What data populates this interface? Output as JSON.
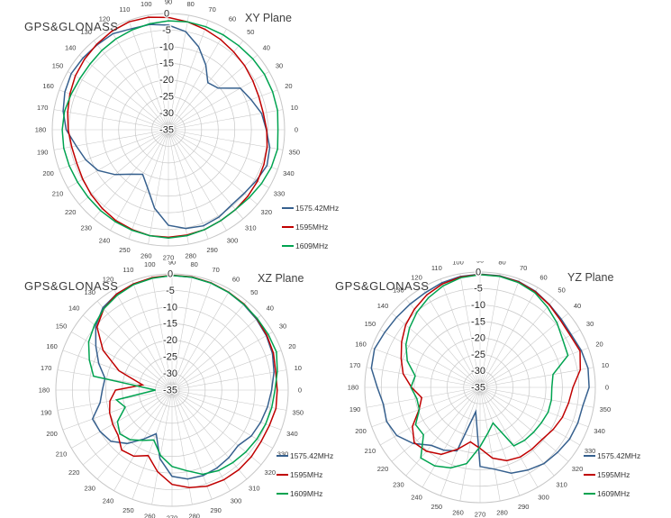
{
  "figure": {
    "description": "Three polar antenna radiation pattern plots for a GPS & GLONASS antenna",
    "background": "#ffffff"
  },
  "colors": {
    "grid": "#c7c7c7",
    "angle_tick_label": "#404040",
    "radial_tick_label": "#262626",
    "hub_smudge": "#8a8a8a"
  },
  "polar_axes": {
    "r_ticks": [
      0,
      -5,
      -10,
      -15,
      -20,
      -25,
      -30,
      -35
    ],
    "r_min": -35,
    "r_max": 0,
    "angle_tick_step_deg": 10,
    "angle_direction": "counterclockwise, 0 at right, 90 at top",
    "grid": "on"
  },
  "chart_data": [
    {
      "type": "line",
      "polar": true,
      "title": "XY Plane",
      "corner_label": "GPS&GLONASS",
      "legend_position": "bottom-right",
      "angles_deg": [
        0,
        10,
        20,
        30,
        40,
        50,
        60,
        70,
        80,
        90,
        100,
        110,
        120,
        130,
        140,
        150,
        160,
        170,
        180,
        190,
        200,
        210,
        220,
        230,
        240,
        250,
        260,
        270,
        280,
        290,
        300,
        310,
        320,
        330,
        340,
        350
      ],
      "series": [
        {
          "name": "1575.42MHz",
          "color": "#36608e",
          "values": [
            -5.5,
            -6.5,
            -8.5,
            -10,
            -15.5,
            -16.5,
            -12.5,
            -8.4,
            -5,
            -3.5,
            -2.8,
            -2.6,
            -1.6,
            -1.6,
            -1.4,
            -1.2,
            -1.8,
            -2.8,
            -4.2,
            -6.8,
            -8.5,
            -10.5,
            -14,
            -17.5,
            -19.5,
            -16.5,
            -11,
            -6.2,
            -4.8,
            -4.2,
            -4.6,
            -5.4,
            -5.2,
            -4.4,
            -3.4,
            -4
          ]
        },
        {
          "name": "1595MHz",
          "color": "#c00000",
          "values": [
            -5.4,
            -6,
            -6,
            -5.6,
            -5,
            -4.4,
            -3.6,
            -2.8,
            -2,
            -1.2,
            -0.6,
            -0.4,
            -0.8,
            -1.4,
            -2,
            -2.6,
            -3.4,
            -4.2,
            -4.8,
            -5.4,
            -5.6,
            -5.2,
            -4.6,
            -4,
            -3.4,
            -3,
            -2.6,
            -2.6,
            -2.8,
            -3,
            -3.4,
            -3.6,
            -3.8,
            -4,
            -4.4,
            -4.8
          ]
        },
        {
          "name": "1609MHz",
          "color": "#00a350",
          "values": [
            -2,
            -1.6,
            -1.6,
            -1.6,
            -1.8,
            -2,
            -2,
            -2,
            -2,
            -2.2,
            -2.6,
            -3,
            -3.4,
            -3.8,
            -4.2,
            -4.2,
            -3.8,
            -3.2,
            -3,
            -3,
            -3.2,
            -3.4,
            -3.4,
            -3.2,
            -3,
            -2.8,
            -2.6,
            -2.4,
            -2.6,
            -3,
            -3.4,
            -3.6,
            -3.2,
            -2.6,
            -2,
            -1.6
          ]
        }
      ]
    },
    {
      "type": "line",
      "polar": true,
      "title": "XZ Plane",
      "corner_label": "GPS&GLONASS",
      "legend_position": "bottom-right",
      "angles_deg": [
        0,
        10,
        20,
        30,
        40,
        50,
        60,
        70,
        80,
        90,
        100,
        110,
        120,
        130,
        140,
        150,
        160,
        170,
        180,
        190,
        200,
        210,
        220,
        230,
        240,
        250,
        260,
        270,
        280,
        290,
        300,
        310,
        320,
        330,
        340,
        350
      ],
      "series": [
        {
          "name": "1575.42MHz",
          "color": "#36608e",
          "values": [
            -5,
            -3.8,
            -2.8,
            -2.2,
            -1.8,
            -1.4,
            -1,
            -0.7,
            -0.5,
            -0.5,
            -0.7,
            -1,
            -1.6,
            -2.6,
            -5,
            -8.5,
            -11.5,
            -14.5,
            -14,
            -13,
            -9.5,
            -10,
            -11,
            -14,
            -18,
            -21,
            -14,
            -9,
            -7.8,
            -7.6,
            -7.9,
            -8.4,
            -9,
            -7.4,
            -6.6,
            -5.8
          ]
        },
        {
          "name": "1595MHz",
          "color": "#c00000",
          "values": [
            -3.3,
            -3.3,
            -2.5,
            -2,
            -1.6,
            -1.2,
            -0.9,
            -0.6,
            -0.4,
            -0.4,
            -0.6,
            -1,
            -1.6,
            -3,
            -5.5,
            -11,
            -18,
            -26,
            -18,
            -16,
            -15,
            -14.4,
            -13.8,
            -11.4,
            -12,
            -14,
            -10,
            -6.6,
            -5.2,
            -4.2,
            -3.8,
            -3.7,
            -3.8,
            -4,
            -3.8,
            -3.2
          ]
        },
        {
          "name": "1609MHz",
          "color": "#00a350",
          "values": [
            -4,
            -2.8,
            -1.5,
            -1.5,
            -1.5,
            -1.3,
            -1,
            -0.7,
            -0.5,
            -0.5,
            -0.8,
            -1.2,
            -2,
            -3,
            -4.5,
            -6,
            -8.5,
            -11,
            -30,
            -18,
            -20,
            -16,
            -14.5,
            -15.5,
            -17.5,
            -19,
            -15,
            -12,
            -10.4,
            -8,
            -7,
            -6.5,
            -6,
            -5.5,
            -5,
            -4.5
          ]
        }
      ]
    },
    {
      "type": "line",
      "polar": true,
      "title": "YZ Plane",
      "corner_label": "GPS&GLONASS",
      "legend_position": "bottom-right",
      "angles_deg": [
        0,
        10,
        20,
        30,
        40,
        50,
        60,
        70,
        80,
        90,
        100,
        110,
        120,
        130,
        140,
        150,
        160,
        170,
        180,
        190,
        200,
        210,
        220,
        230,
        240,
        250,
        260,
        270,
        280,
        290,
        300,
        310,
        320,
        330,
        340,
        350
      ],
      "series": [
        {
          "name": "1575.42MHz",
          "color": "#36608e",
          "values": [
            -1.9,
            -1.7,
            -2.3,
            -3,
            -2.8,
            -2.2,
            -1.3,
            -0.8,
            -0.6,
            -0.6,
            -0.8,
            -1.2,
            -1.8,
            -2,
            -1.9,
            -1.6,
            -0.9,
            -1.5,
            -3.8,
            -5.2,
            -4.8,
            -5.8,
            -8.5,
            -12,
            -13,
            -14.5,
            -27.5,
            -11,
            -9.8,
            -7.3,
            -6,
            -4.8,
            -4.3,
            -3.6,
            -3.4,
            -3.3
          ]
        },
        {
          "name": "1595MHz",
          "color": "#c00000",
          "values": [
            -6.8,
            -4.1,
            -2.7,
            -3.4,
            -3.2,
            -2.3,
            -1.5,
            -0.9,
            -0.7,
            -0.7,
            -1,
            -1.6,
            -2.6,
            -4,
            -5.5,
            -7.5,
            -9.5,
            -11.3,
            -14.2,
            -17,
            -15.3,
            -11.3,
            -8.9,
            -9.7,
            -11.5,
            -15,
            -18.2,
            -16.5,
            -13.2,
            -11.3,
            -10.6,
            -10.5,
            -10.4,
            -9.4,
            -8.4,
            -7.7
          ]
        },
        {
          "name": "1609MHz",
          "color": "#00a350",
          "values": [
            -13.2,
            -12.5,
            -6.6,
            -6,
            -4.5,
            -3.2,
            -1.8,
            -1.1,
            -0.8,
            -0.8,
            -1.2,
            -2.2,
            -3.6,
            -5.2,
            -7,
            -9,
            -11.5,
            -15,
            -14,
            -15.5,
            -15.4,
            -12.4,
            -12.6,
            -7,
            -7.5,
            -9,
            -11.5,
            -17,
            -21,
            -23.5,
            -14.5,
            -14,
            -13.8,
            -13.5,
            -13,
            -13
          ]
        }
      ]
    }
  ]
}
